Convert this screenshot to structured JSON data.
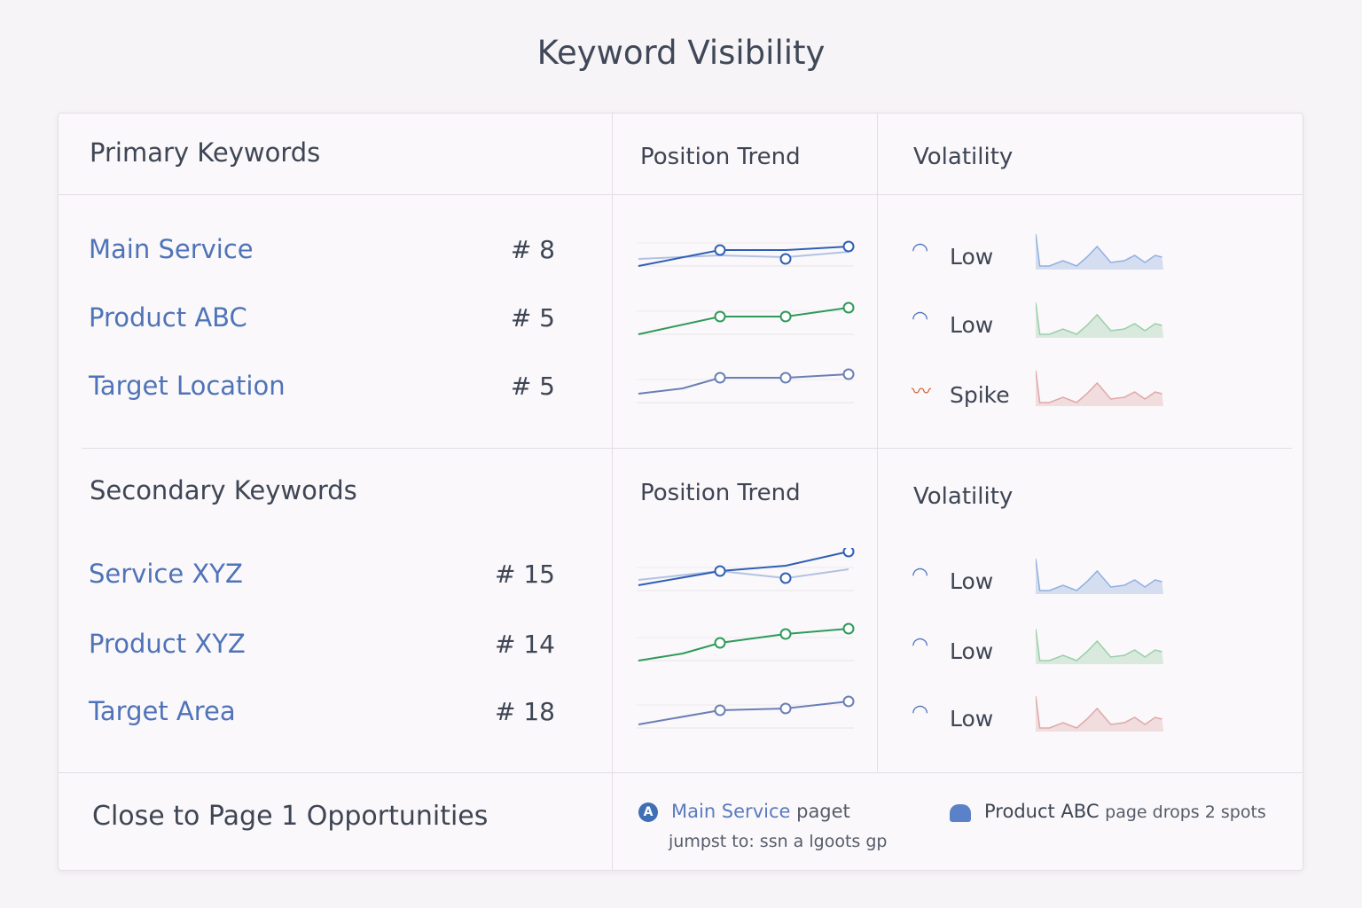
{
  "title": "Keyword Visibility",
  "primary": {
    "heading": "Primary Keywords",
    "trend_heading": "Position Trend",
    "volatility_heading": "Volatility",
    "rows": [
      {
        "keyword": "Main Service",
        "rank": "# 8",
        "volatility": "Low",
        "icon": "signal-icon",
        "color": "#2f5fb5",
        "spark": "#8fb0e0"
      },
      {
        "keyword": "Product ABC",
        "rank": "# 5",
        "volatility": "Low",
        "icon": "signal-icon",
        "color": "#2e9a5a",
        "spark": "#9acfa8"
      },
      {
        "keyword": "Target Location",
        "rank": "# 5",
        "volatility": "Spike",
        "icon": "spike-icon",
        "color": "#6a7fb5",
        "spark": "#e0a8a8"
      }
    ]
  },
  "secondary": {
    "heading": "Secondary Keywords",
    "trend_heading": "Position Trend",
    "volatility_heading": "Volatility",
    "rows": [
      {
        "keyword": "Service XYZ",
        "rank": "# 15",
        "volatility": "Low",
        "icon": "signal-icon",
        "color": "#2f5fb5",
        "spark": "#8fb0e0"
      },
      {
        "keyword": "Product XYZ",
        "rank": "# 14",
        "volatility": "Low",
        "icon": "signal-icon",
        "color": "#2e9a5a",
        "spark": "#9acfa8"
      },
      {
        "keyword": "Target Area",
        "rank": "# 18",
        "volatility": "Low",
        "icon": "signal-icon",
        "color": "#6a7fb5",
        "spark": "#e0a8a8"
      }
    ]
  },
  "footer": {
    "heading": "Close to Page 1 Opportunities",
    "alert1": {
      "highlight": "Main Service",
      "text": "paget",
      "line2": "jumpst to: ssn a lgoots gp"
    },
    "alert2": {
      "highlight": "Product ABC",
      "text": "page drops 2 spots"
    }
  }
}
